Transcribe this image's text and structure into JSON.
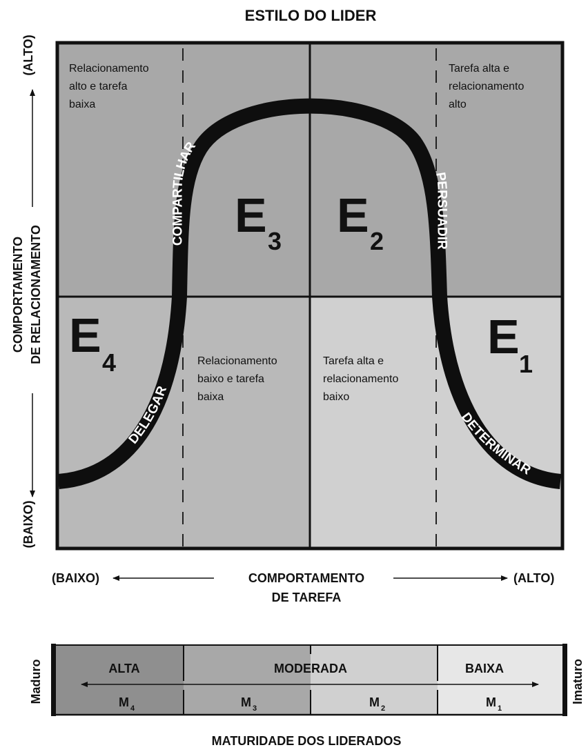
{
  "title": "ESTILO DO LIDER",
  "y_axis": {
    "line1": "COMPORTAMENTO",
    "line2": "DE RELACIONAMENTO",
    "high": "(ALTO)",
    "low": "(BAIXO)"
  },
  "x_axis": {
    "line1": "COMPORTAMENTO",
    "line2": "DE TAREFA",
    "low": "(BAIXO)",
    "high": "(ALTO)"
  },
  "quadrants": {
    "top_left": [
      "Relacionamento",
      "alto e tarefa",
      "baixa"
    ],
    "top_right": [
      "Tarefa alta e",
      "relacionamento",
      "alto"
    ],
    "bottom_left": [
      "Relacionamento",
      "baixo e tarefa",
      "baixa"
    ],
    "bottom_right": [
      "Tarefa alta e",
      "relacionamento",
      "baixo"
    ]
  },
  "styles": [
    {
      "letter": "E",
      "sub": "1",
      "label": "DETERMINAR"
    },
    {
      "letter": "E",
      "sub": "2",
      "label": "PERSUADIR"
    },
    {
      "letter": "E",
      "sub": "3",
      "label": "COMPARTILHAR"
    },
    {
      "letter": "E",
      "sub": "4",
      "label": "DELEGAR"
    }
  ],
  "maturity": {
    "title": "MATURIDADE DOS LIDERADOS",
    "left_end": "Maduro",
    "right_end": "Imaturo",
    "levels": [
      "ALTA",
      "MODERADA",
      "BAIXA"
    ],
    "segments": [
      {
        "letter": "M",
        "sub": "4"
      },
      {
        "letter": "M",
        "sub": "3"
      },
      {
        "letter": "M",
        "sub": "2"
      },
      {
        "letter": "M",
        "sub": "1"
      }
    ]
  },
  "colors": {
    "dark_gray": "#a8a8a8",
    "mid_gray": "#b9b9b9",
    "light_gray": "#d0d0d0",
    "lightest_gray": "#e7e7e7",
    "darkest_gray": "#8f8f8f",
    "ink": "#111111"
  }
}
